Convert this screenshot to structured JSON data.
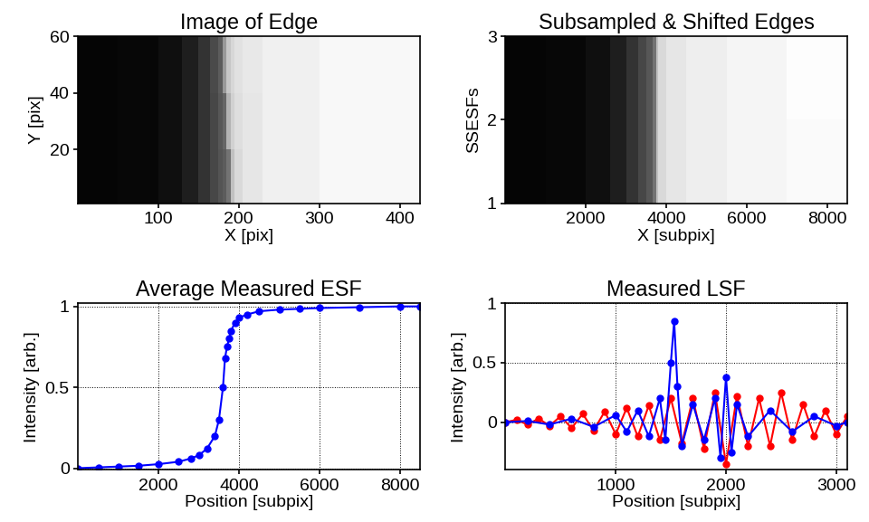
{
  "chart_data": [
    {
      "type": "heatmap",
      "title": "Image of Edge",
      "x_label": "X [pix]",
      "y_label": "Y [pix]",
      "x_edges": [
        1,
        50,
        100,
        130,
        150,
        165,
        175,
        180,
        185,
        190,
        195,
        205,
        230,
        300,
        425
      ],
      "y_edges": [
        1,
        20,
        40,
        60
      ],
      "cells": [
        [
          0.02,
          0.03,
          0.06,
          0.12,
          0.2,
          0.28,
          0.33,
          0.36,
          0.45,
          0.75,
          0.85,
          0.9,
          0.94,
          0.97
        ],
        [
          0.02,
          0.03,
          0.06,
          0.12,
          0.2,
          0.28,
          0.34,
          0.4,
          0.7,
          0.82,
          0.87,
          0.9,
          0.94,
          0.97
        ],
        [
          0.02,
          0.03,
          0.06,
          0.12,
          0.2,
          0.29,
          0.36,
          0.6,
          0.78,
          0.84,
          0.88,
          0.91,
          0.94,
          0.97
        ]
      ],
      "color_range": [
        0,
        1
      ],
      "xlim": [
        1,
        425
      ],
      "ylim": [
        1,
        60
      ],
      "xticks": [
        100,
        200,
        300,
        400
      ],
      "yticks": [
        20,
        40,
        60
      ]
    },
    {
      "type": "heatmap",
      "title": "Subsampled & Shifted Edges",
      "x_label": "X [subpix]",
      "y_label": "SSESFs",
      "x_edges": [
        1,
        1000,
        2000,
        2600,
        3000,
        3300,
        3500,
        3650,
        3750,
        3800,
        4000,
        4500,
        5500,
        7000,
        8500
      ],
      "y_edges": [
        1,
        2,
        3
      ],
      "cells": [
        [
          0.02,
          0.03,
          0.06,
          0.12,
          0.2,
          0.28,
          0.34,
          0.45,
          0.75,
          0.85,
          0.9,
          0.93,
          0.96,
          0.98
        ],
        [
          0.02,
          0.03,
          0.06,
          0.12,
          0.2,
          0.28,
          0.34,
          0.45,
          0.75,
          0.85,
          0.9,
          0.93,
          0.96,
          0.99
        ]
      ],
      "color_range": [
        0,
        1
      ],
      "xlim": [
        1,
        8500
      ],
      "ylim": [
        1,
        3
      ],
      "xticks": [
        2000,
        4000,
        6000,
        8000
      ],
      "yticks": [
        1,
        2,
        3
      ]
    },
    {
      "type": "line",
      "title": "Average Measured ESF",
      "x_label": "Position [subpix]",
      "y_label": "Intensity [arb.]",
      "grid": true,
      "series": [
        {
          "color": "#0000ff",
          "marker": "o",
          "line_style": "solid",
          "x": [
            0,
            500,
            1000,
            1500,
            2000,
            2500,
            2800,
            3000,
            3200,
            3400,
            3500,
            3600,
            3650,
            3700,
            3750,
            3800,
            3900,
            4000,
            4200,
            4500,
            5000,
            5500,
            6000,
            7000,
            8000,
            8500
          ],
          "values": [
            0.0,
            0.005,
            0.01,
            0.015,
            0.025,
            0.04,
            0.06,
            0.08,
            0.12,
            0.2,
            0.3,
            0.5,
            0.68,
            0.75,
            0.8,
            0.85,
            0.9,
            0.93,
            0.95,
            0.97,
            0.98,
            0.985,
            0.99,
            0.995,
            1.0,
            1.0
          ]
        }
      ],
      "xlim": [
        0,
        8500
      ],
      "ylim": [
        -0.01,
        1.02
      ],
      "xticks": [
        2000,
        4000,
        6000,
        8000
      ],
      "yticks": [
        0,
        0.5,
        1
      ]
    },
    {
      "type": "line",
      "title": "Measured LSF",
      "x_label": "Position [subpix]",
      "y_label": "Intensity [arb.]",
      "grid": true,
      "series": [
        {
          "color": "#ff0000",
          "marker": "o",
          "line_style": "solid",
          "x": [
            0,
            100,
            200,
            300,
            400,
            500,
            600,
            700,
            800,
            900,
            1000,
            1100,
            1200,
            1300,
            1400,
            1500,
            1600,
            1700,
            1800,
            1900,
            2000,
            2100,
            2200,
            2300,
            2400,
            2500,
            2600,
            2700,
            2800,
            2900,
            3000,
            3100
          ],
          "values": [
            0.0,
            0.02,
            -0.02,
            0.03,
            -0.03,
            0.05,
            -0.05,
            0.07,
            -0.07,
            0.09,
            -0.1,
            0.12,
            -0.12,
            0.14,
            -0.15,
            0.2,
            -0.18,
            0.2,
            -0.22,
            0.25,
            -0.35,
            0.22,
            -0.2,
            0.2,
            -0.2,
            0.25,
            -0.15,
            0.15,
            -0.12,
            0.1,
            -0.1,
            0.05
          ]
        },
        {
          "color": "#0000ff",
          "marker": "o",
          "line_style": "solid",
          "x": [
            0,
            200,
            400,
            600,
            800,
            1000,
            1100,
            1200,
            1300,
            1400,
            1450,
            1500,
            1530,
            1560,
            1600,
            1700,
            1800,
            1900,
            1950,
            2000,
            2050,
            2100,
            2200,
            2400,
            2600,
            2800,
            3000,
            3100
          ],
          "values": [
            0.0,
            0.01,
            -0.02,
            0.03,
            -0.04,
            0.06,
            -0.08,
            0.1,
            -0.12,
            0.2,
            -0.15,
            0.5,
            0.85,
            0.3,
            -0.2,
            0.15,
            -0.15,
            0.2,
            -0.3,
            0.38,
            -0.25,
            0.15,
            -0.12,
            0.1,
            -0.08,
            0.05,
            -0.03,
            0.0
          ]
        }
      ],
      "xlim": [
        0,
        3100
      ],
      "ylim": [
        -0.4,
        1
      ],
      "xticks": [
        1000,
        2000,
        3000
      ],
      "yticks": [
        0,
        0.5,
        1
      ]
    }
  ]
}
